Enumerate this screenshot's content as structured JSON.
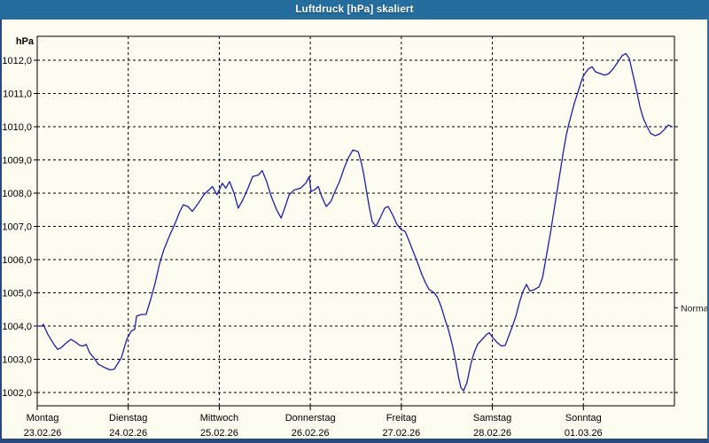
{
  "window": {
    "title": "Luftdruck [hPa] skaliert"
  },
  "colors": {
    "titlebar": "#256d9d",
    "title_text": "#ffffff",
    "frame": "#27497e",
    "frame_right": "#2e6e96",
    "background": "#fcfcf1",
    "grid": "#000000",
    "line": "#1d1db8",
    "axis_text": "#000000",
    "normal_text": "#222222"
  },
  "chart_data": {
    "type": "line",
    "title": "Luftdruck [hPa] skaliert",
    "grid": "dashed",
    "legend_position": "none",
    "y_axis": {
      "unit_label": "hPa",
      "min": 1002,
      "max": 1012,
      "tick_step": 1,
      "tick_labels": [
        "1012,0",
        "1011,0",
        "1010,0",
        "1009,0",
        "1008,0",
        "1007,0",
        "1006,0",
        "1005,0",
        "1004,0",
        "1003,0",
        "1002,0"
      ]
    },
    "x_axis": {
      "hours_total": 168,
      "days": [
        {
          "name": "Montag",
          "date": "23.02.26"
        },
        {
          "name": "Dienstag",
          "date": "24.02.26"
        },
        {
          "name": "Mittwoch",
          "date": "25.02.26"
        },
        {
          "name": "Donnerstag",
          "date": "26.02.26"
        },
        {
          "name": "Freitag",
          "date": "27.02.26"
        },
        {
          "name": "Samstag",
          "date": "28.02.26"
        },
        {
          "name": "Sonntag",
          "date": "01.03.26"
        }
      ]
    },
    "annotations": [
      {
        "label": "Normal",
        "value": 1004.55,
        "side": "right"
      }
    ],
    "series": [
      {
        "name": "Luftdruck",
        "color": "#1d1db8",
        "points": [
          [
            0,
            1004.0
          ],
          [
            1.3,
            1004.0
          ],
          [
            1.6,
            1004.05
          ],
          [
            2.8,
            1003.75
          ],
          [
            4.4,
            1003.45
          ],
          [
            5.4,
            1003.3
          ],
          [
            6.3,
            1003.35
          ],
          [
            7.7,
            1003.5
          ],
          [
            8.9,
            1003.6
          ],
          [
            10.3,
            1003.5
          ],
          [
            11.2,
            1003.42
          ],
          [
            12.2,
            1003.4
          ],
          [
            12.9,
            1003.45
          ],
          [
            13.8,
            1003.2
          ],
          [
            15.2,
            1003.0
          ],
          [
            16.1,
            1002.85
          ],
          [
            17.8,
            1002.75
          ],
          [
            19.2,
            1002.68
          ],
          [
            20.3,
            1002.7
          ],
          [
            22.2,
            1003.05
          ],
          [
            23.6,
            1003.6
          ],
          [
            24.8,
            1003.85
          ],
          [
            25.7,
            1003.9
          ],
          [
            26.2,
            1004.3
          ],
          [
            27.6,
            1004.35
          ],
          [
            28.7,
            1004.35
          ],
          [
            29.9,
            1004.8
          ],
          [
            31.1,
            1005.3
          ],
          [
            32.2,
            1005.85
          ],
          [
            33.4,
            1006.3
          ],
          [
            35,
            1006.75
          ],
          [
            36.4,
            1007.1
          ],
          [
            37.4,
            1007.4
          ],
          [
            38.5,
            1007.65
          ],
          [
            39.7,
            1007.6
          ],
          [
            40.9,
            1007.45
          ],
          [
            42.5,
            1007.7
          ],
          [
            43.9,
            1007.95
          ],
          [
            45.3,
            1008.1
          ],
          [
            46.2,
            1008.2
          ],
          [
            47.4,
            1007.95
          ],
          [
            48.8,
            1008.3
          ],
          [
            49.7,
            1008.15
          ],
          [
            50.7,
            1008.35
          ],
          [
            51.9,
            1008.0
          ],
          [
            53,
            1007.55
          ],
          [
            54.2,
            1007.8
          ],
          [
            55.4,
            1008.1
          ],
          [
            56.8,
            1008.5
          ],
          [
            58.4,
            1008.55
          ],
          [
            59.3,
            1008.68
          ],
          [
            60.5,
            1008.35
          ],
          [
            61.7,
            1007.9
          ],
          [
            63.1,
            1007.5
          ],
          [
            64.3,
            1007.25
          ],
          [
            65.4,
            1007.6
          ],
          [
            66.4,
            1007.95
          ],
          [
            67.8,
            1008.1
          ],
          [
            69.4,
            1008.15
          ],
          [
            70.8,
            1008.3
          ],
          [
            71.7,
            1008.5
          ],
          [
            72.2,
            1008.05
          ],
          [
            73.1,
            1008.1
          ],
          [
            74.1,
            1008.2
          ],
          [
            75,
            1007.9
          ],
          [
            76.2,
            1007.6
          ],
          [
            77.4,
            1007.75
          ],
          [
            78.5,
            1008.05
          ],
          [
            79.7,
            1008.35
          ],
          [
            80.9,
            1008.75
          ],
          [
            82,
            1009.05
          ],
          [
            83.2,
            1009.3
          ],
          [
            84.6,
            1009.25
          ],
          [
            85.5,
            1008.9
          ],
          [
            86.2,
            1008.5
          ],
          [
            86.9,
            1008.0
          ],
          [
            87.6,
            1007.55
          ],
          [
            88.3,
            1007.15
          ],
          [
            89.3,
            1007.0
          ],
          [
            90.4,
            1007.25
          ],
          [
            91.6,
            1007.55
          ],
          [
            92.5,
            1007.6
          ],
          [
            93.7,
            1007.35
          ],
          [
            94.9,
            1007.05
          ],
          [
            96,
            1006.9
          ],
          [
            97,
            1006.85
          ],
          [
            97.9,
            1006.6
          ],
          [
            99.1,
            1006.25
          ],
          [
            100.3,
            1005.9
          ],
          [
            101.4,
            1005.55
          ],
          [
            102.4,
            1005.3
          ],
          [
            103.3,
            1005.1
          ],
          [
            104.7,
            1005.0
          ],
          [
            105.6,
            1004.85
          ],
          [
            106.6,
            1004.55
          ],
          [
            107.5,
            1004.2
          ],
          [
            108.4,
            1003.9
          ],
          [
            109.4,
            1003.45
          ],
          [
            110.3,
            1002.95
          ],
          [
            111,
            1002.5
          ],
          [
            111.7,
            1002.15
          ],
          [
            112.4,
            1002.05
          ],
          [
            113.3,
            1002.3
          ],
          [
            114.3,
            1002.85
          ],
          [
            115.2,
            1003.2
          ],
          [
            116.1,
            1003.45
          ],
          [
            117.3,
            1003.6
          ],
          [
            118.5,
            1003.75
          ],
          [
            119.2,
            1003.8
          ],
          [
            120.1,
            1003.65
          ],
          [
            121.3,
            1003.5
          ],
          [
            122.4,
            1003.4
          ],
          [
            123.4,
            1003.42
          ],
          [
            124.3,
            1003.7
          ],
          [
            125.3,
            1004.0
          ],
          [
            126.2,
            1004.3
          ],
          [
            127.1,
            1004.7
          ],
          [
            128.1,
            1005.05
          ],
          [
            129,
            1005.25
          ],
          [
            129.9,
            1005.05
          ],
          [
            131.1,
            1005.1
          ],
          [
            132.3,
            1005.18
          ],
          [
            133.2,
            1005.45
          ],
          [
            133.9,
            1005.9
          ],
          [
            134.6,
            1006.35
          ],
          [
            135.3,
            1006.8
          ],
          [
            136,
            1007.3
          ],
          [
            136.7,
            1007.8
          ],
          [
            137.4,
            1008.3
          ],
          [
            138.1,
            1008.8
          ],
          [
            138.8,
            1009.3
          ],
          [
            139.5,
            1009.75
          ],
          [
            140.2,
            1010.1
          ],
          [
            140.9,
            1010.4
          ],
          [
            141.6,
            1010.7
          ],
          [
            142.3,
            1010.95
          ],
          [
            143,
            1011.2
          ],
          [
            143.7,
            1011.45
          ],
          [
            144.4,
            1011.6
          ],
          [
            145.4,
            1011.75
          ],
          [
            146.3,
            1011.8
          ],
          [
            147.2,
            1011.65
          ],
          [
            148.4,
            1011.6
          ],
          [
            149.6,
            1011.55
          ],
          [
            150.7,
            1011.6
          ],
          [
            151.9,
            1011.75
          ],
          [
            153.1,
            1011.95
          ],
          [
            154.3,
            1012.15
          ],
          [
            155.2,
            1012.2
          ],
          [
            156.1,
            1012.05
          ],
          [
            157,
            1011.6
          ],
          [
            158,
            1011.1
          ],
          [
            158.9,
            1010.6
          ],
          [
            159.8,
            1010.25
          ],
          [
            160.8,
            1010.0
          ],
          [
            161.7,
            1009.8
          ],
          [
            162.9,
            1009.73
          ],
          [
            164.1,
            1009.78
          ],
          [
            165.2,
            1009.9
          ],
          [
            166.4,
            1010.05
          ],
          [
            167.3,
            1010.0
          ]
        ]
      }
    ]
  }
}
